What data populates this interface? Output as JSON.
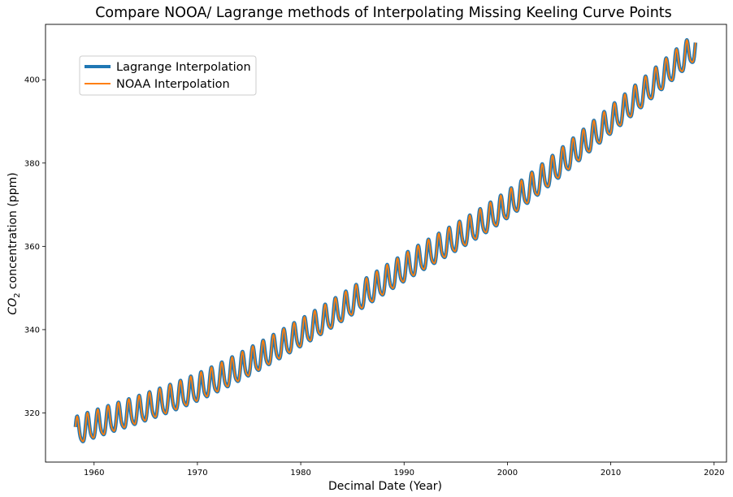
{
  "chart_data": {
    "type": "line",
    "title": "Compare NOOA/ Lagrange methods of Interpolating Missing Keeling Curve Points",
    "xlabel": "Decimal Date (Year)",
    "ylabel_main": "CO",
    "ylabel_sub": "2",
    "ylabel_rest": " concentration (ppm)",
    "xlim": [
      1955.3,
      2021.2
    ],
    "ylim": [
      308.2,
      413.3
    ],
    "xticks": [
      1960,
      1970,
      1980,
      1990,
      2000,
      2010,
      2020
    ],
    "yticks": [
      320,
      340,
      360,
      380,
      400
    ],
    "grid": false,
    "legend_position": "upper-left",
    "x_start": 1958.2,
    "x_end": 2018.2,
    "trend": {
      "description_free": true,
      "anchors_x": [
        1958.2,
        1970,
        1980,
        1990,
        2000,
        2010,
        2018.2
      ],
      "anchors_y": [
        315.2,
        325.6,
        338.7,
        354.3,
        369.5,
        389.8,
        407.5
      ]
    },
    "seasonal_amplitude": 3.2,
    "series": [
      {
        "name": "Lagrange Interpolation",
        "color": "#1f77b4",
        "width": 4.5
      },
      {
        "name": "NOAA Interpolation",
        "color": "#ff7f0e",
        "width": 1.8
      }
    ]
  }
}
